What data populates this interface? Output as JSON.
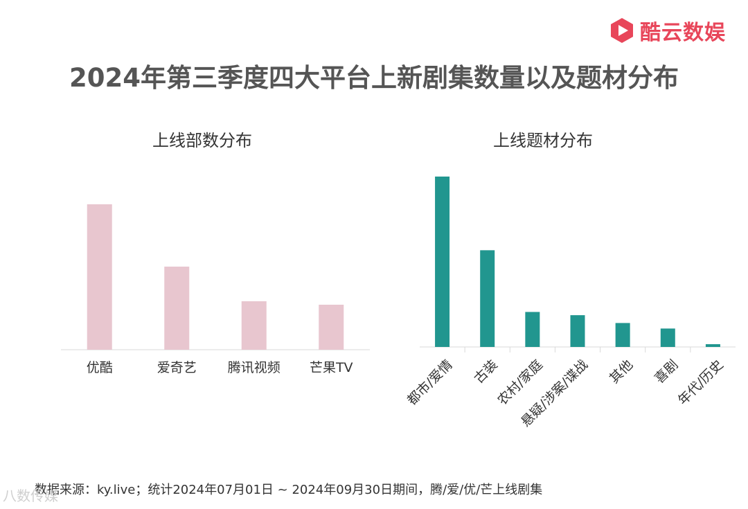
{
  "brand": {
    "name": "酷云数娱",
    "color": "#e8465a",
    "icon": "play-hexagon-icon"
  },
  "title": "2024年第三季度四大平台上新剧集数量以及题材分布",
  "footer": "数据来源：ky.live；统计2024年07月01日 ~ 2024年09月30日期间，腾/爱/优/芒上线剧集",
  "watermark": "八数传媒",
  "chart_data": [
    {
      "type": "bar",
      "title": "上线部数分布",
      "categories": [
        "优酷",
        "爱奇艺",
        "腾讯视频",
        "芒果TV"
      ],
      "values": [
        42,
        24,
        14,
        13
      ],
      "ylim": [
        0,
        50
      ],
      "color": "#e8c6cf",
      "grid": false,
      "legend": "none"
    },
    {
      "type": "bar",
      "title": "上线题材分布",
      "categories": [
        "都市/爱情",
        "古装",
        "农村/家庭",
        "悬疑/涉案/谍战",
        "其他",
        "喜剧",
        "年代/历史"
      ],
      "values": [
        37,
        21,
        7.6,
        6.9,
        5.2,
        4,
        0.6
      ],
      "ylim": [
        0,
        40
      ],
      "color": "#21968f",
      "grid": false,
      "legend": "none"
    }
  ]
}
